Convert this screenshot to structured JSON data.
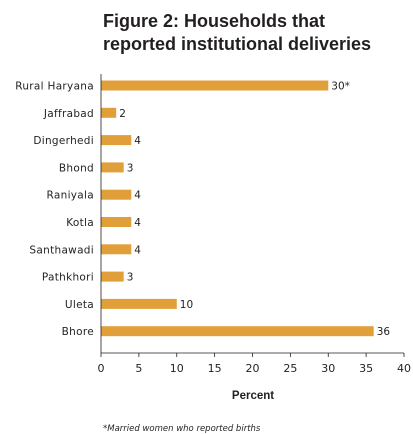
{
  "chart_data": {
    "type": "bar",
    "orientation": "horizontal",
    "title": "Figure 2: Households that reported institutional deliveries",
    "xlabel": "Percent",
    "ylabel": "",
    "xlim": [
      0,
      40
    ],
    "x_ticks": [
      0,
      5,
      10,
      15,
      20,
      25,
      30,
      35,
      40
    ],
    "categories": [
      "Rural Haryana",
      "Jaffrabad",
      "Dingerhedi",
      "Bhond",
      "Raniyala",
      "Kotla",
      "Santhawadi",
      "Pathkhori",
      "Uleta",
      "Bhore"
    ],
    "values": [
      30,
      2,
      4,
      3,
      4,
      4,
      4,
      3,
      10,
      36
    ],
    "data_labels": [
      "30*",
      "2",
      "4",
      "3",
      "4",
      "4",
      "4",
      "3",
      "10",
      "36"
    ],
    "bar_color": "#e19f3a",
    "grid": false,
    "legend": "none",
    "footnote": "*Married women who reported births"
  }
}
